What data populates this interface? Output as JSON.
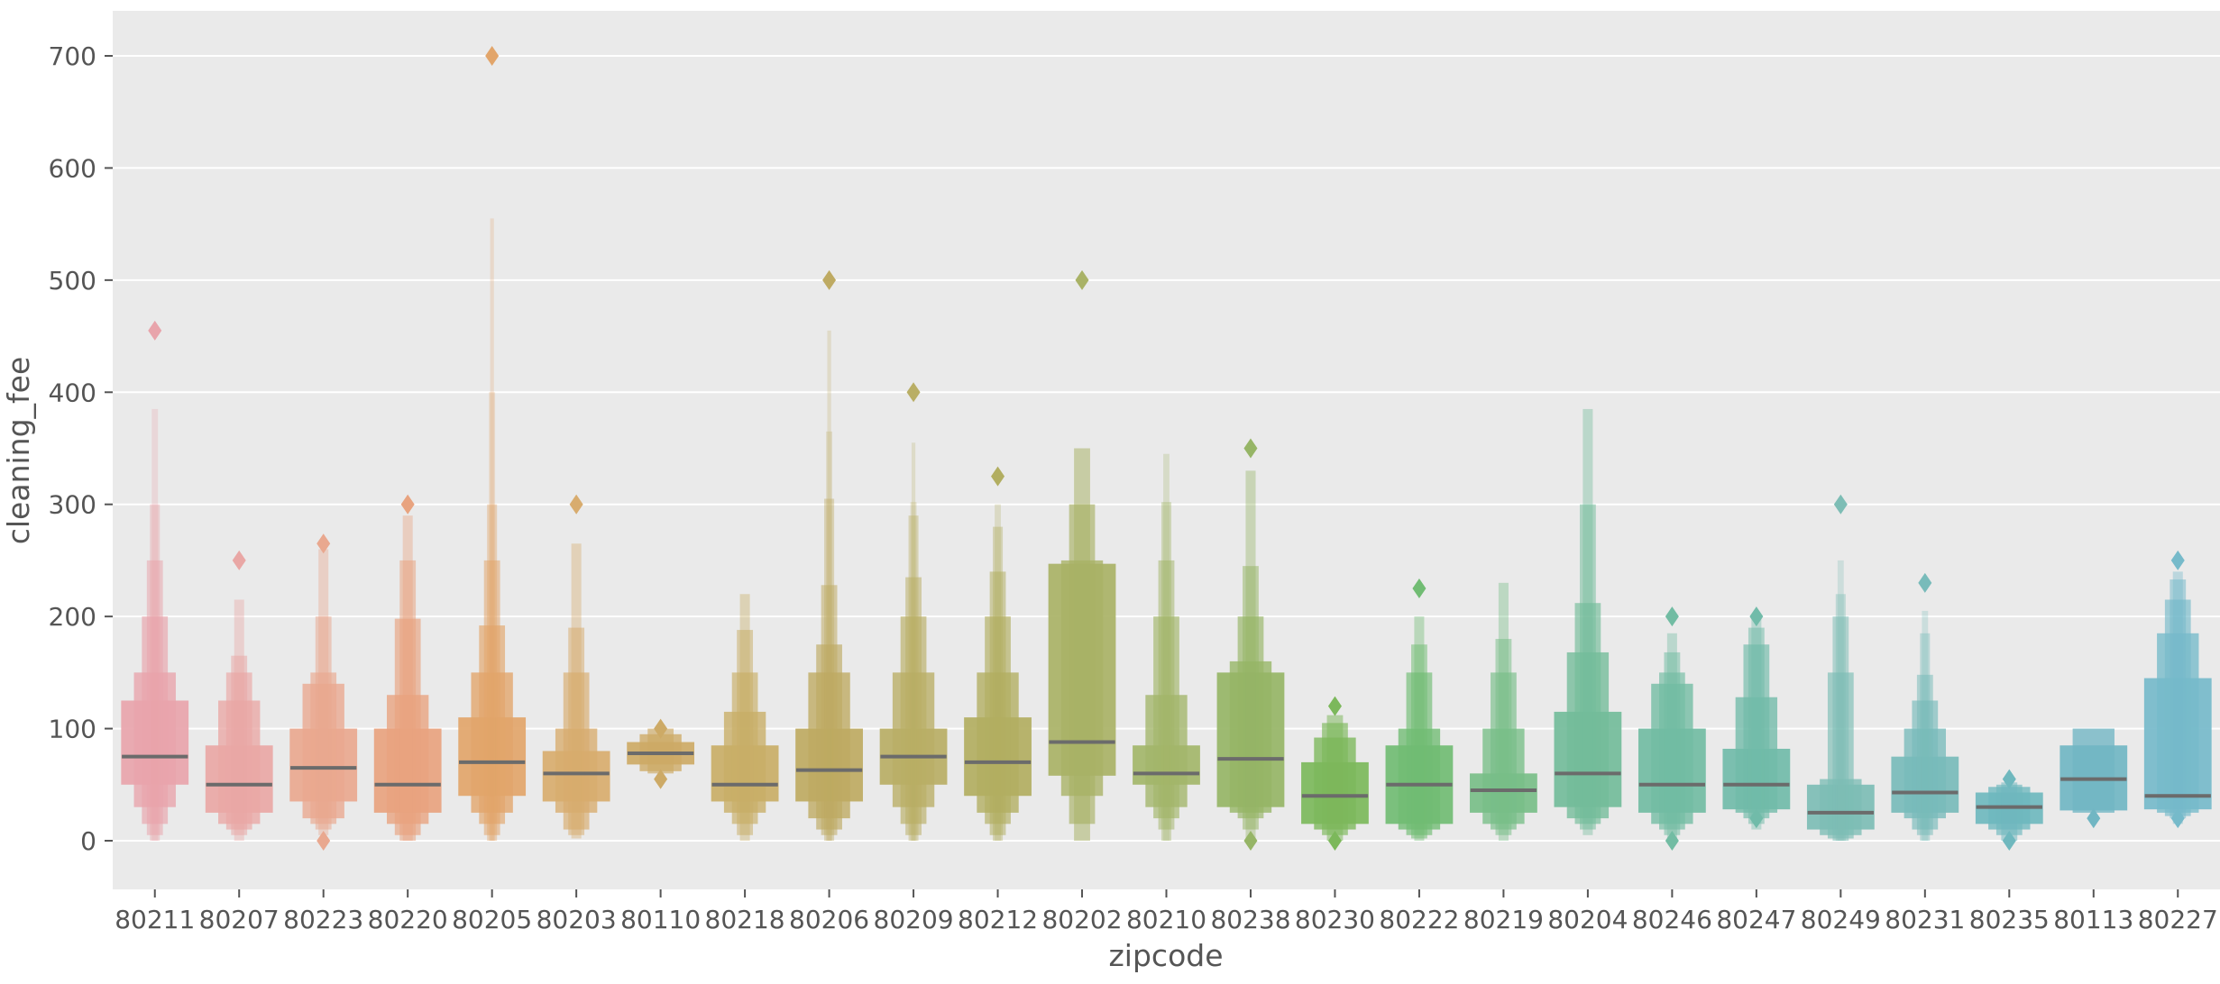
{
  "chart_data": {
    "type": "boxenplot",
    "xlabel": "zipcode",
    "ylabel": "cleaning_fee",
    "ylim": [
      -42,
      742
    ],
    "yticks": [
      0,
      100,
      200,
      300,
      400,
      500,
      600,
      700
    ],
    "grid": true,
    "background": "#EAEAEA",
    "median_color": "#6b6b6b",
    "categories": [
      "80211",
      "80207",
      "80223",
      "80220",
      "80205",
      "80203",
      "80110",
      "80218",
      "80206",
      "80209",
      "80212",
      "80202",
      "80210",
      "80238",
      "80230",
      "80222",
      "80219",
      "80204",
      "80246",
      "80247",
      "80249",
      "80231",
      "80235",
      "80113",
      "80227"
    ],
    "colors": [
      "#E8A4AB",
      "#E9A7A5",
      "#E9A88F",
      "#E8A37F",
      "#E2A56A",
      "#D8AC6E",
      "#CDAA66",
      "#C9AE67",
      "#BEAA62",
      "#B9AE65",
      "#B2AE61",
      "#A9B266",
      "#A3B66A",
      "#96B566",
      "#7CB85B",
      "#71BC73",
      "#78BE88",
      "#73BC9A",
      "#72BCA3",
      "#71BBA9",
      "#7DBDB5",
      "#78BBBA",
      "#6FB8BE",
      "#71B6C3",
      "#76BACA"
    ],
    "medians": [
      75,
      50,
      65,
      50,
      70,
      60,
      78,
      50,
      63,
      75,
      70,
      88,
      60,
      73,
      40,
      50,
      45,
      60,
      50,
      50,
      25,
      43,
      30,
      55,
      40
    ],
    "boxes": [
      [
        [
          50,
          125
        ],
        [
          30,
          150
        ],
        [
          15,
          200
        ],
        [
          5,
          250
        ],
        [
          0,
          300
        ],
        [
          0,
          385
        ]
      ],
      [
        [
          25,
          85
        ],
        [
          15,
          125
        ],
        [
          10,
          150
        ],
        [
          5,
          165
        ],
        [
          0,
          215
        ]
      ],
      [
        [
          35,
          100
        ],
        [
          20,
          140
        ],
        [
          15,
          150
        ],
        [
          10,
          200
        ],
        [
          5,
          260
        ]
      ],
      [
        [
          25,
          100
        ],
        [
          15,
          130
        ],
        [
          5,
          198
        ],
        [
          0,
          250
        ],
        [
          0,
          290
        ]
      ],
      [
        [
          40,
          110
        ],
        [
          25,
          150
        ],
        [
          15,
          192
        ],
        [
          5,
          250
        ],
        [
          0,
          300
        ],
        [
          0,
          400
        ],
        [
          0,
          555
        ]
      ],
      [
        [
          35,
          80
        ],
        [
          25,
          100
        ],
        [
          10,
          150
        ],
        [
          5,
          190
        ],
        [
          2,
          265
        ]
      ],
      [
        [
          68,
          88
        ],
        [
          62,
          95
        ],
        [
          60,
          100
        ]
      ],
      [
        [
          35,
          85
        ],
        [
          25,
          115
        ],
        [
          15,
          150
        ],
        [
          5,
          188
        ],
        [
          0,
          220
        ]
      ],
      [
        [
          35,
          100
        ],
        [
          20,
          150
        ],
        [
          10,
          175
        ],
        [
          5,
          228
        ],
        [
          0,
          305
        ],
        [
          0,
          365
        ],
        [
          0,
          455
        ]
      ],
      [
        [
          50,
          100
        ],
        [
          30,
          150
        ],
        [
          15,
          200
        ],
        [
          5,
          235
        ],
        [
          0,
          290
        ],
        [
          0,
          302
        ],
        [
          0,
          355
        ]
      ],
      [
        [
          40,
          110
        ],
        [
          25,
          150
        ],
        [
          15,
          200
        ],
        [
          5,
          240
        ],
        [
          0,
          280
        ],
        [
          0,
          300
        ]
      ],
      [
        [
          58,
          247
        ],
        [
          40,
          250
        ],
        [
          15,
          300
        ],
        [
          0,
          350
        ]
      ],
      [
        [
          50,
          85
        ],
        [
          30,
          130
        ],
        [
          20,
          200
        ],
        [
          10,
          250
        ],
        [
          0,
          302
        ],
        [
          0,
          345
        ]
      ],
      [
        [
          30,
          150
        ],
        [
          25,
          160
        ],
        [
          20,
          200
        ],
        [
          10,
          245
        ],
        [
          0,
          330
        ]
      ],
      [
        [
          15,
          70
        ],
        [
          10,
          92
        ],
        [
          5,
          105
        ],
        [
          0,
          112
        ]
      ],
      [
        [
          15,
          85
        ],
        [
          10,
          100
        ],
        [
          5,
          150
        ],
        [
          2,
          175
        ],
        [
          0,
          200
        ]
      ],
      [
        [
          25,
          60
        ],
        [
          15,
          100
        ],
        [
          10,
          150
        ],
        [
          5,
          180
        ],
        [
          0,
          230
        ]
      ],
      [
        [
          30,
          115
        ],
        [
          20,
          168
        ],
        [
          15,
          212
        ],
        [
          10,
          300
        ],
        [
          5,
          385
        ]
      ],
      [
        [
          25,
          100
        ],
        [
          15,
          140
        ],
        [
          10,
          150
        ],
        [
          5,
          168
        ],
        [
          2,
          185
        ]
      ],
      [
        [
          28,
          82
        ],
        [
          25,
          128
        ],
        [
          20,
          175
        ],
        [
          15,
          190
        ],
        [
          10,
          198
        ]
      ],
      [
        [
          10,
          50
        ],
        [
          5,
          55
        ],
        [
          2,
          150
        ],
        [
          0,
          200
        ],
        [
          0,
          220
        ],
        [
          0,
          250
        ]
      ],
      [
        [
          25,
          75
        ],
        [
          20,
          100
        ],
        [
          10,
          125
        ],
        [
          5,
          148
        ],
        [
          0,
          185
        ],
        [
          0,
          205
        ]
      ],
      [
        [
          15,
          43
        ],
        [
          10,
          48
        ],
        [
          5,
          50
        ],
        [
          0,
          52
        ]
      ],
      [
        [
          27,
          85
        ],
        [
          25,
          100
        ]
      ],
      [
        [
          28,
          145
        ],
        [
          25,
          185
        ],
        [
          22,
          215
        ],
        [
          20,
          233
        ],
        [
          15,
          240
        ]
      ]
    ],
    "outliers": [
      [
        455
      ],
      [
        250
      ],
      [
        0,
        265
      ],
      [
        300
      ],
      [
        700
      ],
      [
        300
      ],
      [
        55,
        100
      ],
      [],
      [
        500
      ],
      [
        400
      ],
      [
        325
      ],
      [
        500
      ],
      [],
      [
        0,
        350
      ],
      [
        0,
        120
      ],
      [
        225
      ],
      [],
      [],
      [
        0,
        200
      ],
      [
        20,
        200
      ],
      [
        300
      ],
      [
        230
      ],
      [
        0,
        55
      ],
      [
        20
      ],
      [
        20,
        250
      ]
    ]
  }
}
